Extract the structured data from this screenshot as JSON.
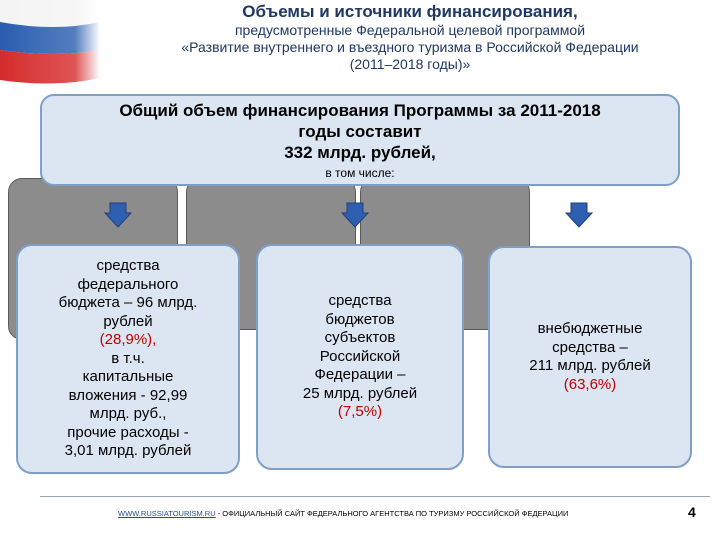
{
  "title": "Объемы и источники финансирования,",
  "subtitle_lines": [
    "предусмотренные Федеральной целевой программой",
    "«Развитие внутреннего и въездного туризма в Российской Федерации",
    "(2011–2018 годы)»"
  ],
  "total": {
    "lines": [
      "Общий объем финансирования Программы за 2011-2018",
      "годы составит",
      "332 млрд. рублей,"
    ],
    "sub": "в том числе:"
  },
  "sources": [
    {
      "lines_before": [
        "средства",
        "федерального",
        "бюджета – 96 млрд.",
        "рублей"
      ],
      "pct": "(28,9%),",
      "lines_after": [
        "в т.ч.",
        "капитальные",
        "вложения - 92,99",
        "млрд. руб.,",
        "прочие расходы -",
        "3,01 млрд. рублей"
      ]
    },
    {
      "lines_before": [
        "средства",
        "бюджетов",
        "субъектов",
        "Российской",
        "Федерации –",
        "25 млрд. рублей"
      ],
      "pct": "(7,5%)",
      "lines_after": []
    },
    {
      "lines_before": [
        "внебюджетные",
        "средства –",
        "211 млрд. рублей"
      ],
      "pct": "(63,6%)",
      "lines_after": []
    }
  ],
  "footer": {
    "link": "WWW.RUSSIATOURISM.RU",
    "text": " - ОФИЦИАЛЬНЫЙ САЙТ ФЕДЕРАЛЬНОГО АГЕНТСТВА ПО ТУРИЗМУ РОССИЙСКОЙ ФЕДЕРАЦИИ"
  },
  "page_number": "4",
  "colors": {
    "box_fill": "#dce6f2",
    "box_border": "#7f9fc7",
    "shadow": "#8c8c8c",
    "percent": "#c00000",
    "arrow": "#2e5fb0"
  }
}
